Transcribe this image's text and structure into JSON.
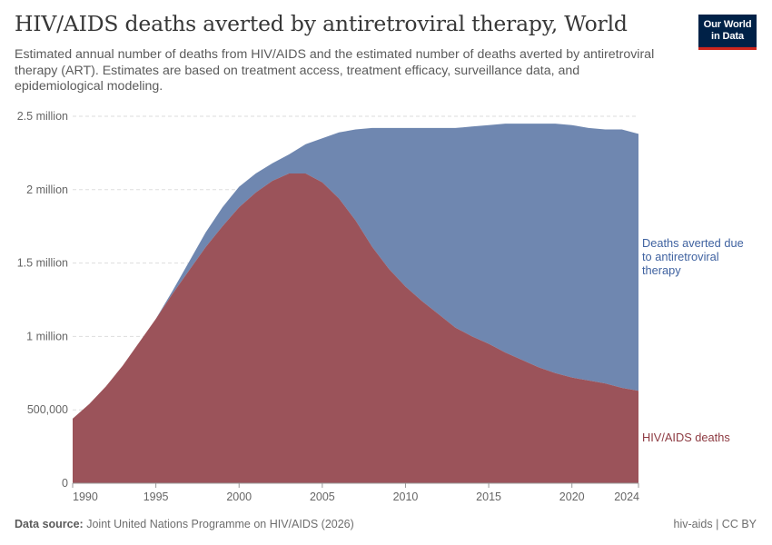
{
  "header": {
    "title": "HIV/AIDS deaths averted by antiretroviral therapy, World",
    "subtitle": "Estimated annual number of deaths from HIV/AIDS and the estimated number of deaths averted by antiretroviral therapy (ART). Estimates are based on treatment access, treatment efficacy, surveillance data, and epidemiological modeling.",
    "logo_line1": "Our World",
    "logo_line2": "in Data"
  },
  "footer": {
    "source_label": "Data source:",
    "source_text": "Joint United Nations Programme on HIV/AIDS (2026)",
    "right_text": "hiv-aids | CC BY"
  },
  "colors": {
    "deaths": "#9b535a",
    "averted": "#6f87b0",
    "deaths_label": "#8d3a41",
    "averted_label": "#3f62a0"
  },
  "chart_data": {
    "type": "area",
    "stacked": true,
    "x": [
      1990,
      1991,
      1992,
      1993,
      1994,
      1995,
      1996,
      1997,
      1998,
      1999,
      2000,
      2001,
      2002,
      2003,
      2004,
      2005,
      2006,
      2007,
      2008,
      2009,
      2010,
      2011,
      2012,
      2013,
      2014,
      2015,
      2016,
      2017,
      2018,
      2019,
      2020,
      2021,
      2022,
      2023,
      2024
    ],
    "series": [
      {
        "name": "HIV/AIDS deaths",
        "label_lines": [
          "HIV/AIDS deaths"
        ],
        "values": [
          440000,
          540000,
          660000,
          800000,
          960000,
          1120000,
          1290000,
          1450000,
          1610000,
          1750000,
          1880000,
          1980000,
          2060000,
          2110000,
          2110000,
          2050000,
          1940000,
          1790000,
          1610000,
          1460000,
          1340000,
          1240000,
          1150000,
          1060000,
          1000000,
          950000,
          890000,
          840000,
          790000,
          750000,
          720000,
          700000,
          680000,
          650000,
          630000
        ]
      },
      {
        "name": "Deaths averted due to antiretroviral therapy",
        "label_lines": [
          "Deaths averted due",
          "to antiretroviral",
          "therapy"
        ],
        "values": [
          0,
          0,
          0,
          0,
          0,
          0,
          20000,
          60000,
          100000,
          130000,
          140000,
          130000,
          120000,
          130000,
          200000,
          300000,
          450000,
          620000,
          810000,
          960000,
          1080000,
          1180000,
          1270000,
          1360000,
          1430000,
          1490000,
          1560000,
          1610000,
          1660000,
          1700000,
          1720000,
          1720000,
          1730000,
          1760000,
          1750000
        ]
      }
    ],
    "xlim": [
      1990,
      2024
    ],
    "ylim": [
      0,
      2500000
    ],
    "x_ticks": [
      1990,
      1995,
      2000,
      2005,
      2010,
      2015,
      2020,
      2024
    ],
    "y_ticks": [
      {
        "value": 0,
        "label": "0"
      },
      {
        "value": 500000,
        "label": "500,000"
      },
      {
        "value": 1000000,
        "label": "1 million"
      },
      {
        "value": 1500000,
        "label": "1.5 million"
      },
      {
        "value": 2000000,
        "label": "2 million"
      },
      {
        "value": 2500000,
        "label": "2.5 million"
      }
    ],
    "grid": true,
    "legend": "inline-right"
  }
}
